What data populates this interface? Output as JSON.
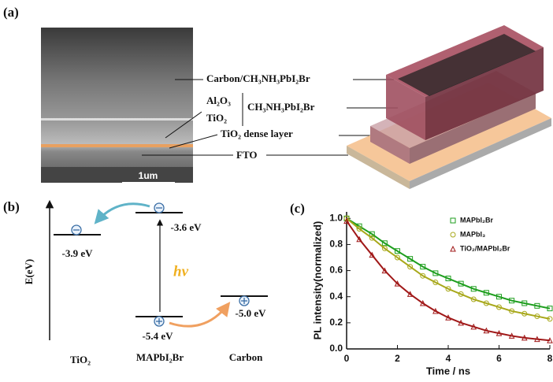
{
  "panel_a": {
    "label": "(a)",
    "scale_bar": "1um",
    "layers": [
      "Carbon/CH₃NH₃PbI₂Br",
      "Al₂O₃",
      "TiO₂",
      "CH₃NH₃PbI₂Br",
      "TiO₂ dense layer",
      "FTO"
    ]
  },
  "panel_b": {
    "label": "(b)",
    "axis_label": "E(eV)",
    "photon": "hν",
    "levels": [
      "-3.9 eV",
      "-3.6 eV",
      "-5.4 eV",
      "-5.0 eV"
    ],
    "materials": [
      "TiO₂",
      "MAPbI₂Br",
      "Carbon"
    ]
  },
  "chart_data": {
    "type": "scatter",
    "panel_label": "(c)",
    "x_label": "Time / ns",
    "y_label": "PL intensity(normalized)",
    "x": [
      0,
      0.5,
      1,
      1.5,
      2,
      2.5,
      3,
      3.5,
      4,
      4.5,
      5,
      5.5,
      6,
      6.5,
      7,
      7.5,
      8
    ],
    "series": [
      {
        "name": "MAPbI₂Br",
        "color": "#1e9e1e",
        "marker": "square",
        "values": [
          1.0,
          0.94,
          0.88,
          0.81,
          0.75,
          0.69,
          0.63,
          0.58,
          0.54,
          0.5,
          0.46,
          0.43,
          0.4,
          0.37,
          0.35,
          0.33,
          0.31
        ]
      },
      {
        "name": "MAPbI₃",
        "color": "#a8a81a",
        "marker": "circle",
        "values": [
          1.0,
          0.92,
          0.85,
          0.77,
          0.7,
          0.63,
          0.56,
          0.51,
          0.46,
          0.42,
          0.38,
          0.35,
          0.32,
          0.29,
          0.27,
          0.25,
          0.23
        ]
      },
      {
        "name": "TiO₂/MAPbI₂Br",
        "color": "#a01818",
        "marker": "triangle",
        "values": [
          0.98,
          0.84,
          0.72,
          0.6,
          0.5,
          0.42,
          0.35,
          0.29,
          0.24,
          0.2,
          0.17,
          0.14,
          0.12,
          0.1,
          0.085,
          0.075,
          0.065
        ]
      }
    ],
    "xlim": [
      0,
      8
    ],
    "ylim": [
      0,
      1.05
    ],
    "xticks": [
      0,
      2,
      4,
      6,
      8
    ],
    "yticks": [
      {
        "value": 0,
        "label": "0.0"
      },
      0.2,
      0.4,
      0.6,
      0.8,
      {
        "value": 1,
        "label": "1.0"
      }
    ],
    "legend": "upper right"
  }
}
